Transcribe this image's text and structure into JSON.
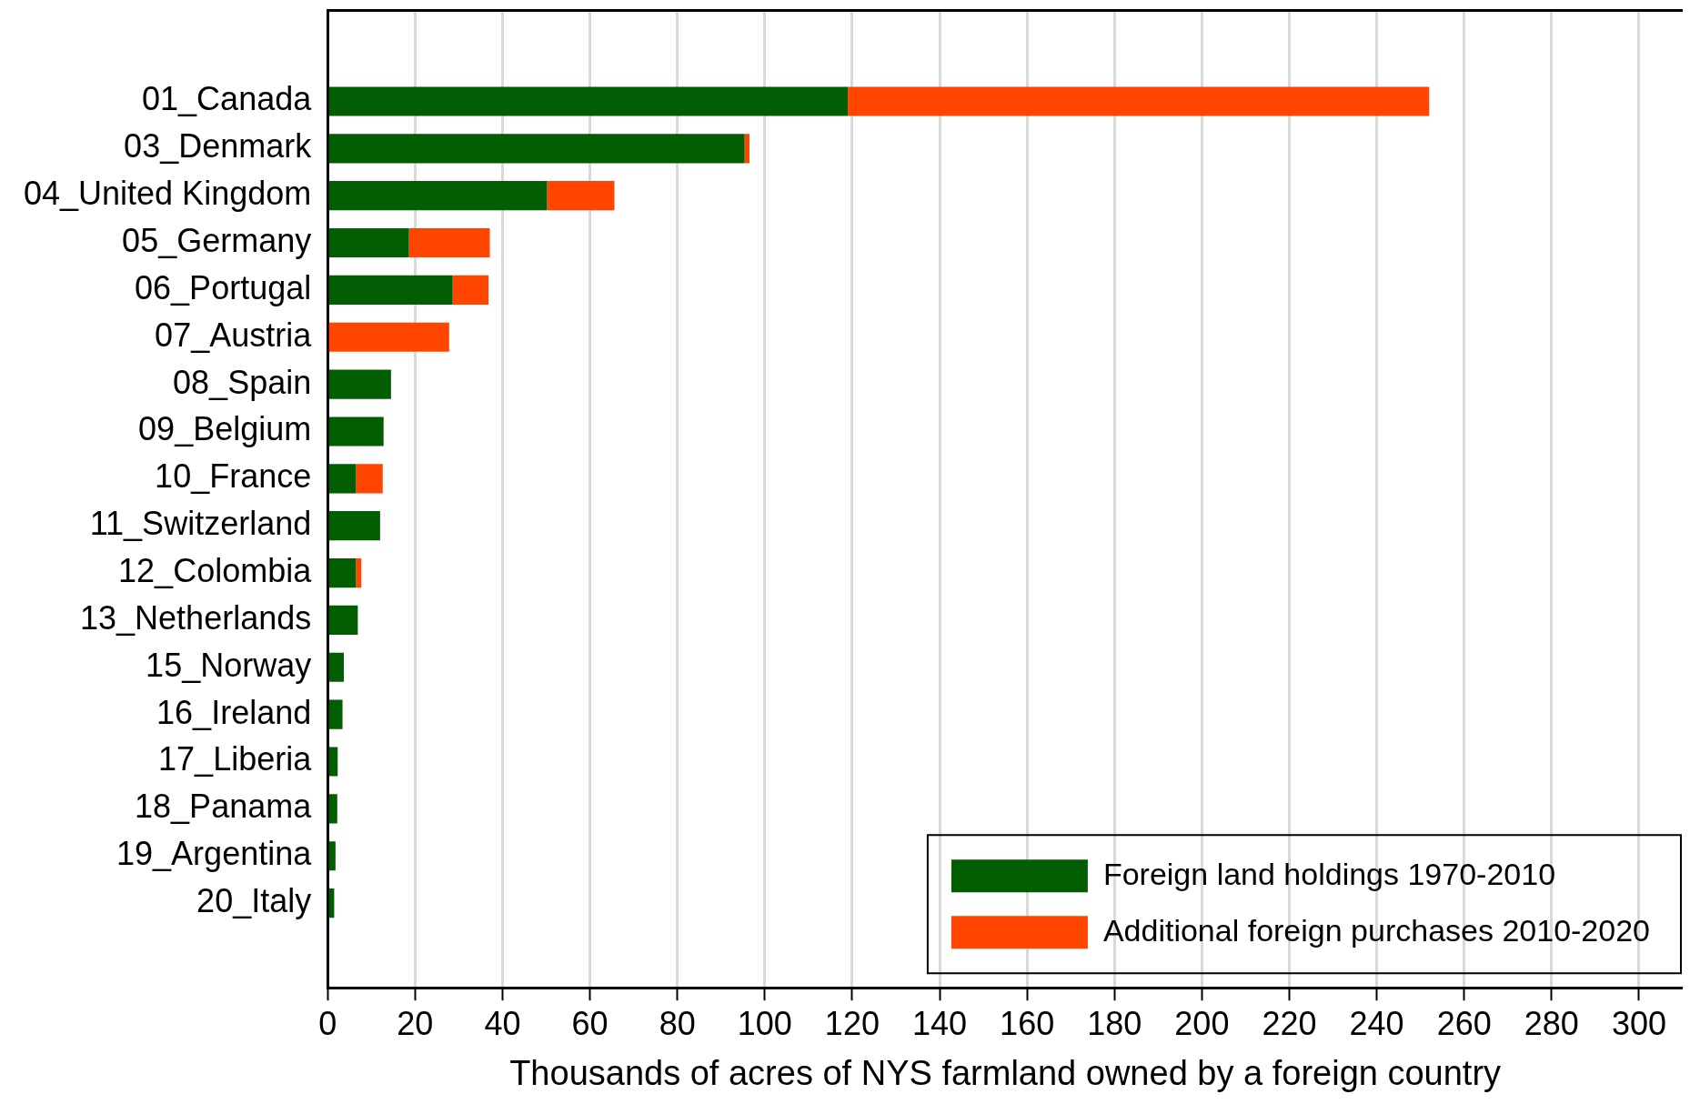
{
  "chart_data": {
    "type": "bar",
    "orientation": "horizontal",
    "stacked": true,
    "xlabel": "Thousands of acres of NYS farmland owned by a foreign country",
    "categories": [
      "01_Canada",
      "03_Denmark",
      "04_United Kingdom",
      "05_Germany",
      "06_Portugal",
      "07_Austria",
      "08_Spain",
      "09_Belgium",
      "10_France",
      "11_Switzerland",
      "12_Colombia",
      "13_Netherlands",
      "15_Norway",
      "16_Ireland",
      "17_Liberia",
      "18_Panama",
      "19_Argentina",
      "20_Italy"
    ],
    "series": [
      {
        "name": "Foreign land holdings 1970-2010",
        "color": "#035e03",
        "values": [
          119,
          95.4,
          50.2,
          18.6,
          28.6,
          0,
          14.5,
          12.8,
          6.5,
          12,
          6.5,
          6.9,
          3.7,
          3.4,
          2.3,
          2.2,
          1.8,
          1.5
        ]
      },
      {
        "name": "Additional foreign purchases 2010-2020",
        "color": "#ff4500",
        "values": [
          133,
          1.1,
          15.4,
          18.5,
          8.2,
          27.8,
          0,
          0,
          6.1,
          0,
          1.2,
          0,
          0,
          0,
          0,
          0,
          0,
          0
        ]
      }
    ],
    "xlim": [
      0,
      310
    ],
    "xticks": [
      0,
      20,
      40,
      60,
      80,
      100,
      120,
      140,
      160,
      180,
      200,
      220,
      240,
      260,
      280,
      300
    ],
    "grid": "x",
    "legend": "bottom right"
  }
}
